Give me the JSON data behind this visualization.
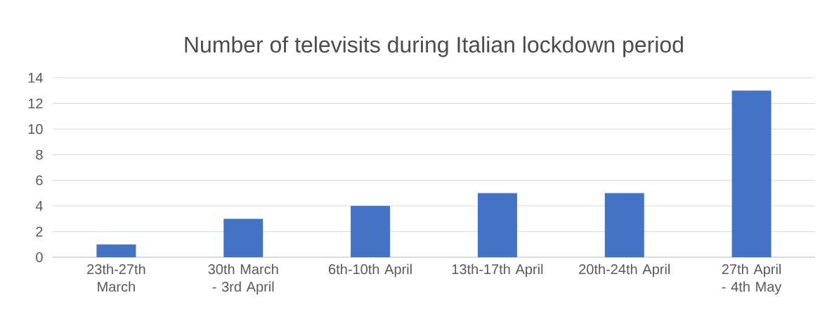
{
  "chart_data": {
    "type": "bar",
    "title": "Number of televisits during Italian lockdown period",
    "categories": [
      "23th-27th March",
      "30th March - 3rd April",
      "6th-10th April",
      "13th-17th April",
      "20th-24th April",
      "27th April - 4th May"
    ],
    "values": [
      1,
      3,
      4,
      5,
      5,
      13
    ],
    "color": "#4472c4",
    "ylim": [
      0,
      14
    ],
    "yticks": [
      0,
      2,
      4,
      6,
      8,
      10,
      12,
      14
    ],
    "grid": "y"
  }
}
